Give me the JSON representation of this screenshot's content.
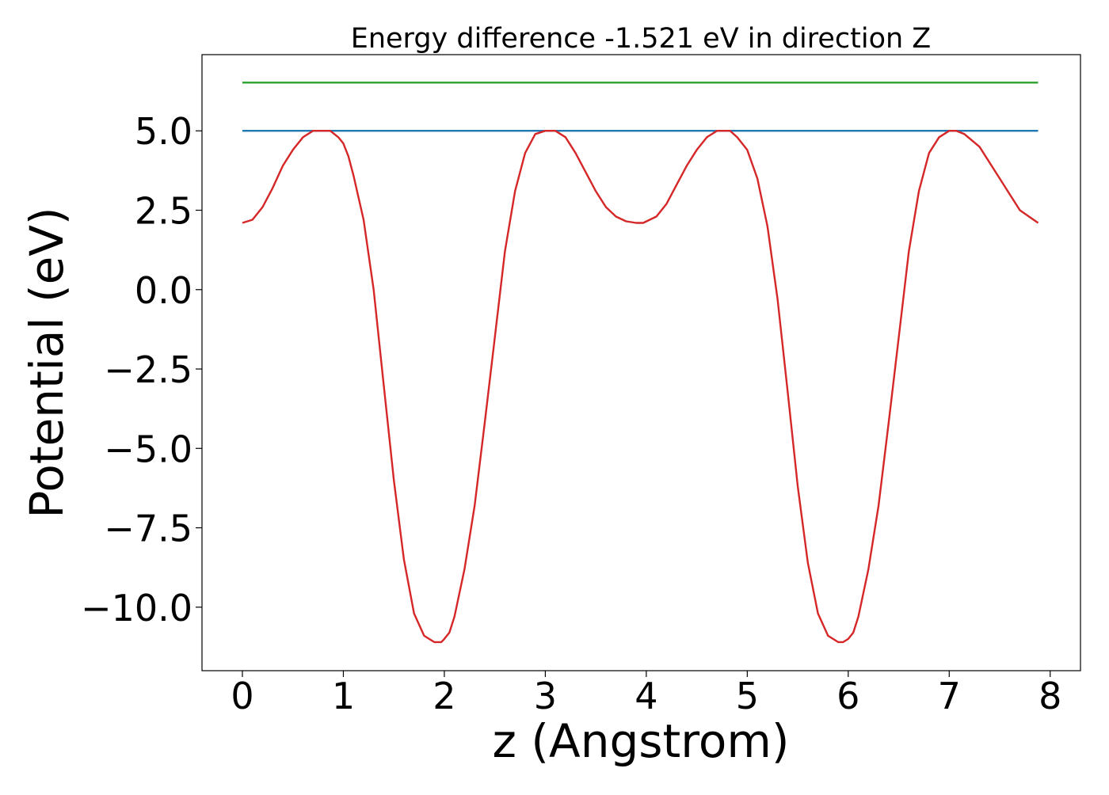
{
  "chart_data": {
    "type": "line",
    "title": "Energy difference -1.521 eV in direction Z",
    "xlabel": "z (Angstrom)",
    "ylabel": "Potential (eV)",
    "xlim": [
      -0.4,
      8.3
    ],
    "ylim": [
      -12.0,
      7.4
    ],
    "x_ticks": [
      0,
      1,
      2,
      3,
      4,
      5,
      6,
      7,
      8
    ],
    "x_tick_labels": [
      "0",
      "1",
      "2",
      "3",
      "4",
      "5",
      "6",
      "7",
      "8"
    ],
    "y_ticks": [
      5.0,
      2.5,
      0.0,
      -2.5,
      -5.0,
      -7.5,
      -10.0
    ],
    "y_tick_labels": [
      "5.0",
      "2.5",
      "0.0",
      "−2.5",
      "−5.0",
      "−7.5",
      "−10.0"
    ],
    "grid": false,
    "legend": "none",
    "series": [
      {
        "color": "#2ca02c",
        "x": [
          0,
          7.88
        ],
        "y": [
          6.52,
          6.52
        ]
      },
      {
        "color": "#1f77b4",
        "x": [
          0,
          7.88
        ],
        "y": [
          5.0,
          5.0
        ]
      },
      {
        "color": "#d62728",
        "x": [
          0,
          0.1,
          0.2,
          0.3,
          0.4,
          0.5,
          0.6,
          0.7,
          0.8,
          0.87,
          0.95,
          1.0,
          1.05,
          1.1,
          1.2,
          1.3,
          1.4,
          1.5,
          1.6,
          1.7,
          1.8,
          1.9,
          1.97,
          2.0,
          2.05,
          2.1,
          2.2,
          2.3,
          2.4,
          2.5,
          2.6,
          2.7,
          2.8,
          2.9,
          3.0,
          3.1,
          3.2,
          3.3,
          3.4,
          3.5,
          3.6,
          3.7,
          3.8,
          3.9,
          3.97,
          4.1,
          4.2,
          4.3,
          4.4,
          4.5,
          4.6,
          4.7,
          4.83,
          4.9,
          5.0,
          5.1,
          5.2,
          5.3,
          5.4,
          5.5,
          5.6,
          5.7,
          5.8,
          5.9,
          5.95,
          6.0,
          6.05,
          6.1,
          6.2,
          6.3,
          6.4,
          6.5,
          6.6,
          6.7,
          6.8,
          6.9,
          7.0,
          7.07,
          7.15,
          7.3,
          7.5,
          7.7,
          7.88
        ],
        "y": [
          2.1,
          2.2,
          2.6,
          3.2,
          3.9,
          4.4,
          4.8,
          5.0,
          5.0,
          5.0,
          4.8,
          4.6,
          4.2,
          3.6,
          2.2,
          0.0,
          -3.0,
          -6.0,
          -8.5,
          -10.2,
          -10.9,
          -11.1,
          -11.1,
          -11.0,
          -10.8,
          -10.3,
          -8.8,
          -6.8,
          -4.2,
          -1.5,
          1.2,
          3.1,
          4.3,
          4.9,
          5.0,
          5.0,
          4.8,
          4.3,
          3.7,
          3.1,
          2.6,
          2.3,
          2.15,
          2.1,
          2.1,
          2.3,
          2.7,
          3.3,
          3.9,
          4.4,
          4.8,
          5.0,
          5.0,
          4.8,
          4.4,
          3.5,
          2.0,
          -0.3,
          -3.2,
          -6.2,
          -8.6,
          -10.2,
          -10.9,
          -11.1,
          -11.1,
          -11.0,
          -10.8,
          -10.3,
          -8.8,
          -6.8,
          -4.2,
          -1.5,
          1.2,
          3.1,
          4.3,
          4.8,
          5.0,
          5.0,
          4.9,
          4.5,
          3.5,
          2.5,
          2.1
        ]
      }
    ]
  }
}
